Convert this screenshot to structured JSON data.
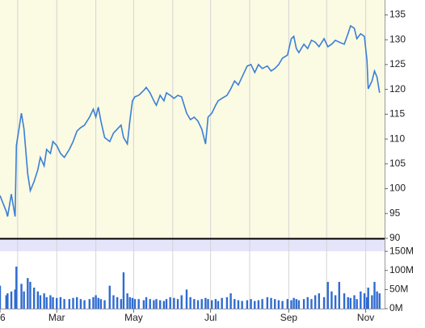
{
  "chart_data": [
    {
      "type": "line",
      "color": "#3a7fd5",
      "x": [
        0,
        5,
        6,
        9,
        12,
        13,
        17,
        19,
        22,
        24,
        27,
        30,
        32,
        35,
        37,
        40,
        42,
        45,
        48,
        51,
        55,
        58,
        61,
        64,
        67,
        71,
        74,
        76,
        78,
        80,
        83,
        87,
        90,
        93,
        96,
        98,
        101,
        103,
        105,
        107,
        110,
        114,
        116,
        119,
        122,
        124,
        127,
        130,
        132,
        135,
        138,
        141,
        144,
        148,
        151,
        154,
        157,
        160,
        163,
        165,
        168,
        171,
        173,
        176,
        180,
        183,
        186,
        189,
        192,
        196,
        199,
        202,
        205,
        208,
        212,
        215,
        218,
        221,
        224,
        228,
        231,
        233,
        235,
        237,
        241,
        244,
        247,
        250,
        253,
        257,
        260,
        263,
        266,
        269,
        273,
        276,
        278,
        281,
        283,
        286,
        289,
        291,
        292,
        295,
        297,
        299,
        301
      ],
      "values": [
        98.6,
        95.4,
        94.4,
        98.9,
        94.4,
        108.7,
        115.2,
        112.0,
        103.0,
        99.6,
        101.4,
        103.8,
        106.3,
        104.6,
        107.9,
        107.1,
        109.5,
        108.7,
        107.1,
        106.3,
        107.9,
        109.5,
        111.6,
        112.3,
        112.8,
        114.4,
        116.0,
        114.4,
        116.4,
        113.6,
        110.3,
        109.5,
        111.2,
        112.0,
        112.8,
        110.3,
        109.0,
        113.6,
        117.7,
        118.5,
        118.8,
        119.8,
        120.4,
        119.3,
        117.7,
        116.8,
        118.8,
        117.7,
        119.3,
        118.8,
        118.2,
        118.8,
        118.5,
        115.2,
        113.9,
        114.4,
        113.6,
        112.0,
        109.0,
        114.4,
        115.2,
        116.8,
        117.7,
        118.2,
        118.8,
        120.1,
        121.7,
        120.9,
        122.5,
        124.7,
        125.0,
        123.4,
        125.0,
        124.2,
        124.7,
        123.7,
        124.2,
        125.0,
        126.3,
        126.9,
        130.2,
        130.7,
        128.2,
        127.4,
        129.1,
        128.2,
        129.9,
        129.5,
        128.6,
        130.2,
        128.6,
        129.1,
        129.9,
        129.5,
        129.1,
        131.2,
        132.8,
        132.3,
        130.2,
        131.2,
        130.7,
        125.8,
        120.1,
        121.7,
        123.7,
        122.5,
        119.3
      ],
      "xlim": [
        0,
        305
      ],
      "ylim": [
        90,
        138
      ],
      "yticks": [
        90,
        95,
        100,
        105,
        110,
        115,
        120,
        125,
        130,
        135
      ],
      "xgrid": [
        14,
        45,
        76,
        106,
        137,
        167,
        198,
        229,
        259,
        290
      ]
    },
    {
      "type": "bar",
      "color": "#2f6bd0",
      "x": [
        0,
        5,
        6,
        9,
        12,
        13,
        17,
        19,
        22,
        24,
        27,
        30,
        32,
        35,
        37,
        40,
        42,
        45,
        48,
        51,
        55,
        58,
        61,
        64,
        67,
        71,
        74,
        76,
        78,
        80,
        83,
        87,
        90,
        93,
        96,
        98,
        101,
        103,
        105,
        107,
        110,
        114,
        116,
        119,
        122,
        124,
        127,
        130,
        132,
        135,
        138,
        141,
        144,
        148,
        151,
        154,
        157,
        160,
        163,
        165,
        168,
        171,
        173,
        176,
        180,
        183,
        186,
        189,
        192,
        196,
        199,
        202,
        205,
        208,
        212,
        215,
        218,
        221,
        224,
        228,
        231,
        233,
        235,
        237,
        241,
        244,
        247,
        250,
        253,
        257,
        260,
        263,
        266,
        269,
        273,
        276,
        278,
        281,
        283,
        286,
        289,
        291,
        292,
        295,
        297,
        299,
        301
      ],
      "values": [
        60,
        35,
        40,
        45,
        50,
        110,
        65,
        45,
        80,
        70,
        55,
        45,
        35,
        40,
        30,
        35,
        30,
        28,
        30,
        25,
        25,
        28,
        30,
        25,
        22,
        25,
        30,
        35,
        28,
        25,
        22,
        60,
        35,
        30,
        25,
        95,
        40,
        30,
        28,
        25,
        25,
        22,
        30,
        25,
        22,
        25,
        22,
        20,
        25,
        30,
        28,
        25,
        35,
        50,
        30,
        25,
        22,
        25,
        28,
        25,
        22,
        25,
        20,
        28,
        30,
        40,
        25,
        22,
        20,
        22,
        25,
        20,
        22,
        25,
        30,
        28,
        25,
        22,
        20,
        25,
        22,
        28,
        25,
        22,
        25,
        30,
        25,
        35,
        40,
        30,
        70,
        45,
        35,
        70,
        40,
        30,
        28,
        35,
        25,
        45,
        40,
        30,
        55,
        35,
        70,
        45,
        40
      ],
      "xlim": [
        0,
        305
      ],
      "ylim": [
        0,
        182
      ],
      "yticks": [
        {
          "value": 0,
          "label": "0M"
        },
        {
          "value": 50,
          "label": "50M"
        },
        {
          "value": 100,
          "label": "100M"
        },
        {
          "value": 150,
          "label": "150M"
        }
      ],
      "xticks": [
        {
          "value": 0,
          "label": "6"
        },
        {
          "value": 45,
          "label": "Mar"
        },
        {
          "value": 106,
          "label": "May"
        },
        {
          "value": 167,
          "label": "Jul"
        },
        {
          "value": 229,
          "label": "Sep"
        },
        {
          "value": 290,
          "label": "Nov"
        }
      ]
    }
  ]
}
